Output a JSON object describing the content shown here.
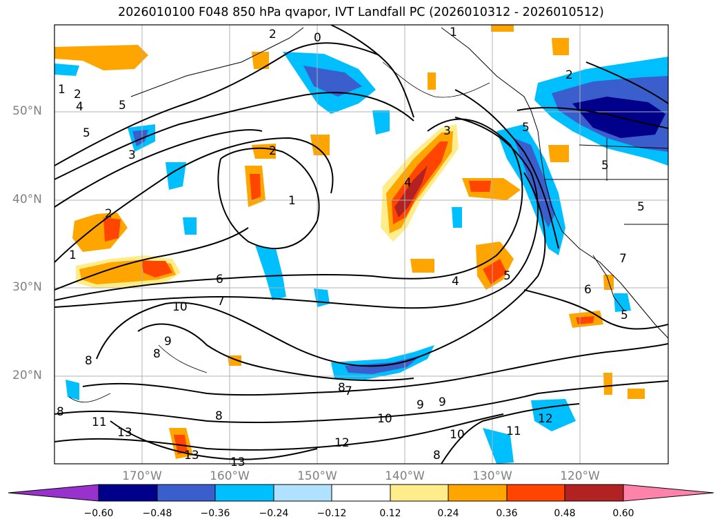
{
  "title": "2026010100 F048 850 hPa qvapor, IVT Landfall PC (2026010312 - 2026010512)",
  "lat_labels": [
    "50°N",
    "40°N",
    "30°N",
    "20°N"
  ],
  "lon_labels": [
    "170°W",
    "160°W",
    "150°W",
    "140°W",
    "130°W",
    "120°W"
  ],
  "colorbar": {
    "tick_labels": [
      "−0.60",
      "−0.48",
      "−0.36",
      "−0.24",
      "−0.12",
      "0.12",
      "0.24",
      "0.36",
      "0.48",
      "0.60"
    ],
    "colors": [
      "#9932cc",
      "#00008b",
      "#3a5fcd",
      "#00bfff",
      "#b0e2ff",
      "#ffffff",
      "#ffec8b",
      "#ffa500",
      "#ff4500",
      "#b22222",
      "#ff82ab"
    ]
  },
  "contour_labels": [
    "1",
    "2",
    "5",
    "5",
    "3",
    "4",
    "1",
    "2",
    "6",
    "7",
    "10",
    "9",
    "8",
    "8",
    "11",
    "13",
    "13",
    "13",
    "8",
    "8",
    "7",
    "10",
    "8",
    "9",
    "12",
    "9",
    "10",
    "8",
    "11",
    "12",
    "2",
    "3",
    "4",
    "1",
    "2",
    "5",
    "5",
    "5",
    "7",
    "6",
    "5",
    "5",
    "4",
    "0",
    "2",
    "1"
  ]
}
